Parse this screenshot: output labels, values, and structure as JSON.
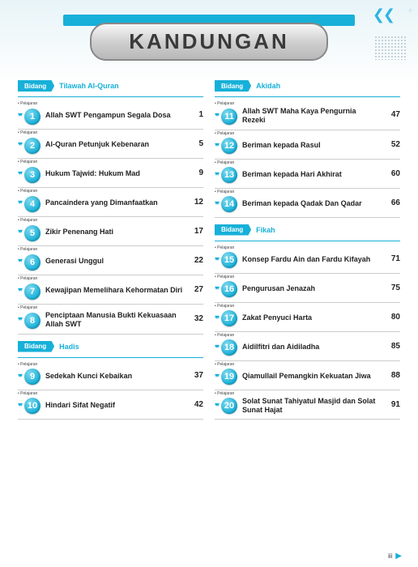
{
  "title": "KANDUNGAN",
  "pelajaran_label": "Pelajaran",
  "bidang_label": "Bidang",
  "page_number": "iii",
  "colors": {
    "accent": "#17b0d8",
    "text": "#222222",
    "rule": "#cccccc"
  },
  "left": [
    {
      "section": "Tilawah Al-Quran",
      "items": [
        {
          "n": "1",
          "title": "Allah SWT Pengampun Segala Dosa",
          "page": "1"
        },
        {
          "n": "2",
          "title": "Al-Quran Petunjuk Kebenaran",
          "page": "5"
        },
        {
          "n": "3",
          "title": "Hukum Tajwid: Hukum Mad",
          "page": "9"
        },
        {
          "n": "4",
          "title": "Pancaindera yang Dimanfaatkan",
          "page": "12"
        },
        {
          "n": "5",
          "title": "Zikir Penenang Hati",
          "page": "17"
        },
        {
          "n": "6",
          "title": "Generasi Unggul",
          "page": "22"
        },
        {
          "n": "7",
          "title": "Kewajipan Memelihara Kehormatan Diri",
          "page": "27"
        },
        {
          "n": "8",
          "title": "Penciptaan Manusia Bukti Kekuasaan Allah SWT",
          "page": "32"
        }
      ]
    },
    {
      "section": "Hadis",
      "items": [
        {
          "n": "9",
          "title": "Sedekah Kunci Kebaikan",
          "page": "37"
        },
        {
          "n": "10",
          "title": "Hindari Sifat Negatif",
          "page": "42"
        }
      ]
    }
  ],
  "right": [
    {
      "section": "Akidah",
      "items": [
        {
          "n": "11",
          "title": "Allah SWT Maha Kaya Pengurnia Rezeki",
          "page": "47"
        },
        {
          "n": "12",
          "title": "Beriman kepada Rasul",
          "page": "52"
        },
        {
          "n": "13",
          "title": "Beriman kepada Hari Akhirat",
          "page": "60"
        },
        {
          "n": "14",
          "title": "Beriman kepada Qadak Dan Qadar",
          "page": "66"
        }
      ]
    },
    {
      "section": "Fikah",
      "items": [
        {
          "n": "15",
          "title": "Konsep Fardu Ain dan Fardu Kifayah",
          "page": "71"
        },
        {
          "n": "16",
          "title": "Pengurusan Jenazah",
          "page": "75"
        },
        {
          "n": "17",
          "title": "Zakat Penyuci Harta",
          "page": "80"
        },
        {
          "n": "18",
          "title": "Aidilfitri dan Aidiladha",
          "page": "85"
        },
        {
          "n": "19",
          "title": "Qiamullail Pemangkin Kekuatan Jiwa",
          "page": "88"
        },
        {
          "n": "20",
          "title": "Solat Sunat Tahiyatul Masjid dan Solat Sunat Hajat",
          "page": "91"
        }
      ]
    }
  ]
}
